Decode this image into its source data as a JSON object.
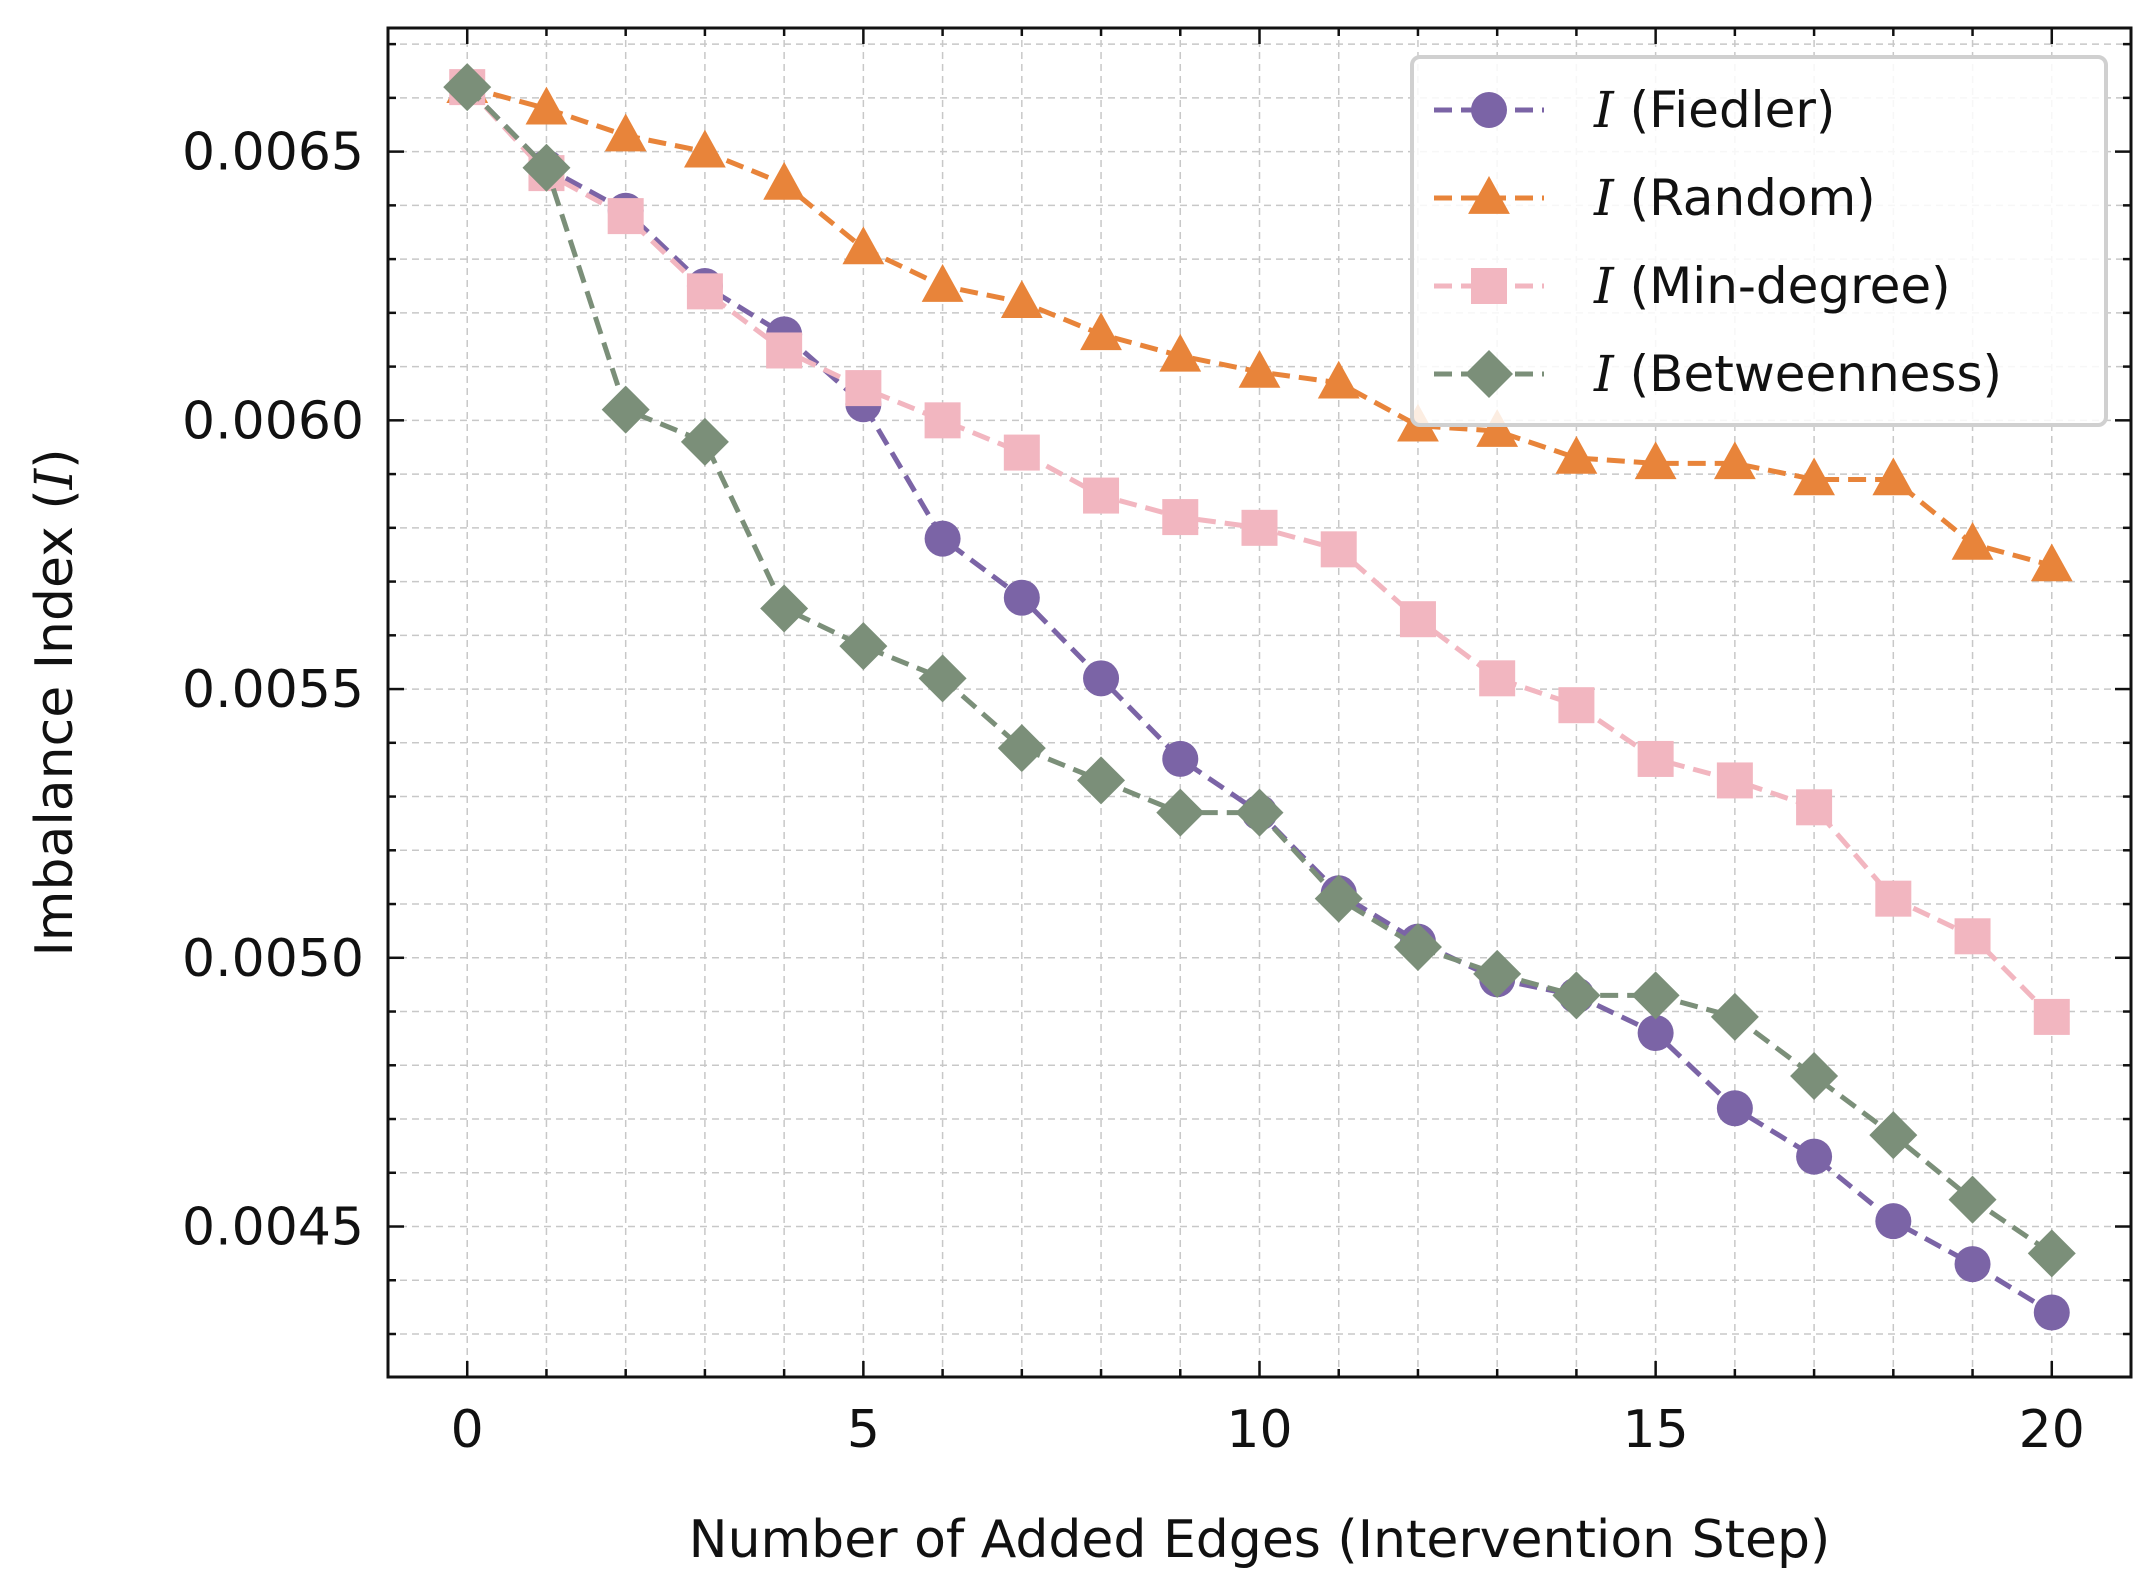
{
  "chart_data": {
    "type": "line",
    "title": "",
    "xlabel": "Number of Added Edges (Intervention Step)",
    "ylabel_prefix": "Imbalance Index (",
    "ylabel_symbol": "I",
    "ylabel_suffix": ")",
    "xlim": [
      -1,
      21
    ],
    "ylim": [
      0.00422,
      0.00673
    ],
    "x_ticks": [
      0,
      5,
      10,
      15,
      20
    ],
    "x_tick_labels": [
      "0",
      "5",
      "10",
      "15",
      "20"
    ],
    "y_ticks": [
      0.0045,
      0.005,
      0.0055,
      0.006,
      0.0065
    ],
    "y_tick_labels": [
      "0.0045",
      "0.0050",
      "0.0055",
      "0.0060",
      "0.0065"
    ],
    "grid": true,
    "legend_position": "top-right",
    "x": [
      0,
      1,
      2,
      3,
      4,
      5,
      6,
      7,
      8,
      9,
      10,
      11,
      12,
      13,
      14,
      15,
      16,
      17,
      18,
      19,
      20
    ],
    "series": [
      {
        "symbol": "I",
        "name": "(Fiedler)",
        "color": "#7b64a6",
        "marker": "circle",
        "values": [
          0.00662,
          0.00647,
          0.00639,
          0.00625,
          0.00616,
          0.00603,
          0.00578,
          0.00567,
          0.00552,
          0.00537,
          0.00527,
          0.00512,
          0.00503,
          0.00496,
          0.00493,
          0.00486,
          0.00472,
          0.00463,
          0.00451,
          0.00443,
          0.00434
        ]
      },
      {
        "symbol": "I",
        "name": "(Random)",
        "color": "#e8843a",
        "marker": "triangle",
        "values": [
          0.00662,
          0.00658,
          0.00653,
          0.0065,
          0.00644,
          0.00632,
          0.00625,
          0.00622,
          0.00616,
          0.00612,
          0.00609,
          0.00607,
          0.00599,
          0.00598,
          0.00593,
          0.00592,
          0.00592,
          0.00589,
          0.00589,
          0.00577,
          0.00573
        ]
      },
      {
        "symbol": "I",
        "name": "(Min-degree)",
        "color": "#f2b6c0",
        "marker": "square",
        "values": [
          0.00662,
          0.00646,
          0.00638,
          0.00624,
          0.00613,
          0.00606,
          0.006,
          0.00594,
          0.00586,
          0.00582,
          0.0058,
          0.00576,
          0.00563,
          0.00552,
          0.00547,
          0.00537,
          0.00533,
          0.00528,
          0.00511,
          0.00504,
          0.00489
        ]
      },
      {
        "symbol": "I",
        "name": "(Betweenness)",
        "color": "#7b8f79",
        "marker": "diamond",
        "values": [
          0.00662,
          0.00647,
          0.00602,
          0.00596,
          0.00565,
          0.00558,
          0.00552,
          0.00539,
          0.00533,
          0.00527,
          0.00527,
          0.00511,
          0.00502,
          0.00497,
          0.00493,
          0.00493,
          0.00489,
          0.00478,
          0.00467,
          0.00455,
          0.00445
        ]
      }
    ]
  }
}
